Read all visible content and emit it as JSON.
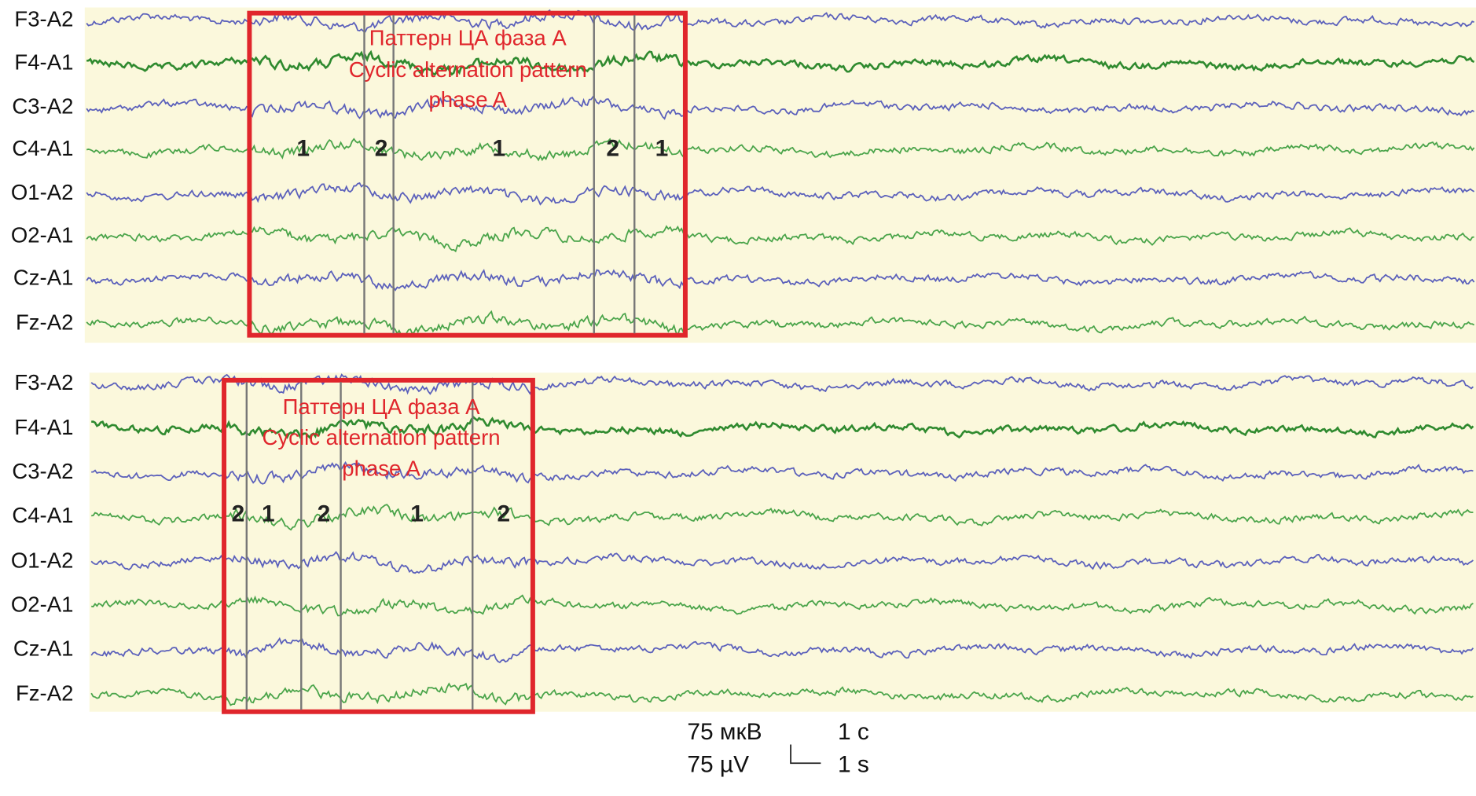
{
  "panels": [
    {
      "channels": [
        "F3-A2",
        "F4-A1",
        "C3-A2",
        "C4-A1",
        "O1-A2",
        "O2-A1",
        "Cz-A1",
        "Fz-A2"
      ],
      "annotation": [
        "Паттерн ЦА фаза А",
        "Cyclic alternation pattern",
        "phase A"
      ],
      "phase_labels": [
        "1",
        "2",
        "1",
        "2",
        "1"
      ]
    },
    {
      "channels": [
        "F3-A2",
        "F4-A1",
        "C3-A2",
        "C4-A1",
        "O1-A2",
        "O2-A1",
        "Cz-A1",
        "Fz-A2"
      ],
      "annotation": [
        "Паттерн ЦА фаза А",
        "Cyclic alternation pattern",
        "phase A"
      ],
      "phase_labels": [
        "2",
        "1",
        "2",
        "1",
        "2"
      ]
    }
  ],
  "scale": {
    "amplitude": [
      "75 мкВ",
      "75 µV"
    ],
    "time": [
      "1 с",
      "1 s"
    ]
  }
}
